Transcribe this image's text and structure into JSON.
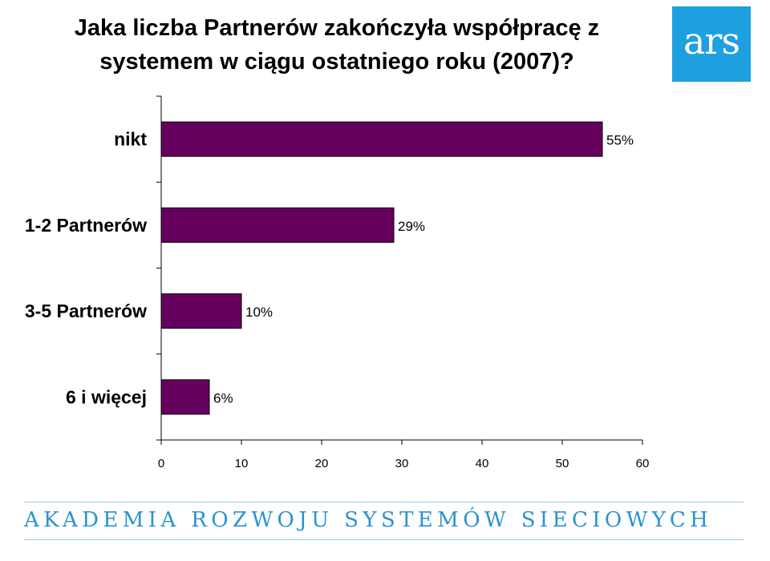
{
  "title_line1": "Jaka liczba Partnerów zakończyła współpracę z",
  "title_line2": "systemem w ciągu ostatniego roku (2007)?",
  "logo_text": "ars",
  "footer_text": "AKADEMIA ROZWOJU SYSTEMÓW SIECIOWYCH",
  "colors": {
    "bar": "#66005f",
    "logo_bg": "#1e9fe0",
    "footer": "#2a93cf"
  },
  "chart_data": {
    "type": "bar",
    "orientation": "horizontal",
    "categories": [
      "nikt",
      "1-2 Partnerów",
      "3-5 Partnerów",
      "6 i więcej"
    ],
    "values": [
      55,
      29,
      10,
      6
    ],
    "data_labels": [
      "55%",
      "29%",
      "10%",
      "6%"
    ],
    "xlim": [
      0,
      60
    ],
    "xticks": [
      0,
      10,
      20,
      30,
      40,
      50,
      60
    ],
    "grid": false,
    "legend": "none"
  }
}
